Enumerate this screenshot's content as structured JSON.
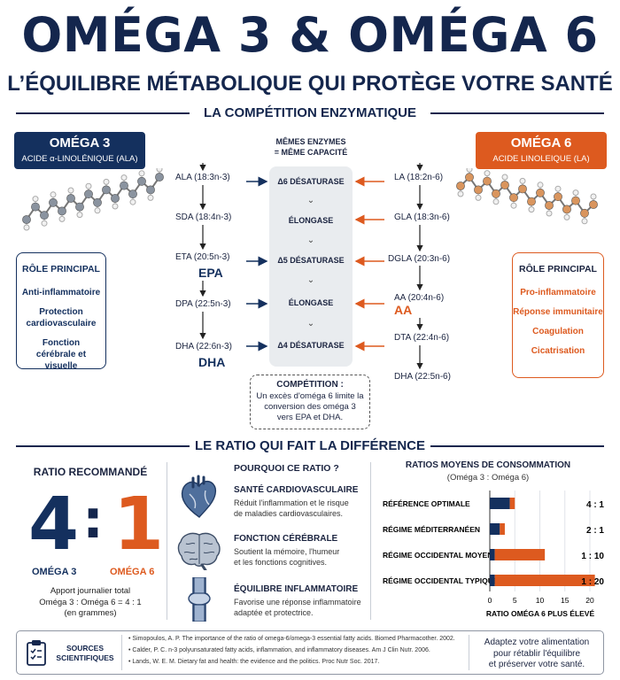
{
  "header": {
    "title": "OMÉGA 3 & OMÉGA 6",
    "subtitle": "L’ÉQUILIBRE MÉTABOLIQUE QUI PROTÈGE VOTRE SANTÉ"
  },
  "section1": {
    "title": "LA COMPÉTITION ENZYMATIQUE",
    "enzymes_heading": [
      "MÊMES ENZYMES",
      "= MÊME CAPACITÉ"
    ]
  },
  "omega3": {
    "title": "OMÉGA 3",
    "subtitle": "ACIDE α-LINOLÉNIQUE (ALA)",
    "color": "#14305e",
    "chain": [
      "ALA (18:3n-3)",
      "SDA (18:4n-3)",
      "ETA (20:5n-3)",
      "DPA (22:5n-3)",
      "DHA (22:6n-3)"
    ],
    "highlights": [
      "EPA",
      "DHA"
    ],
    "role": {
      "title": "RÔLE PRINCIPAL",
      "items": [
        "Anti-inflammatoire",
        "Protection cardiovasculaire",
        "Fonction cérébrale et visuelle"
      ]
    }
  },
  "omega6": {
    "title": "OMÉGA 6",
    "subtitle": "ACIDE LINOLEIQUE (LA)",
    "color": "#dd5a1f",
    "chain": [
      "LA (18:2n-6)",
      "GLA (18:3n-6)",
      "DGLA (20:3n-6)",
      "AA (20:4n-6)",
      "DTA (22:4n-6)",
      "DHA (22:5n-6)"
    ],
    "highlights": [
      "AA"
    ],
    "role": {
      "title": "RÔLE PRINCIPAL",
      "items": [
        "Pro-inflammatoire",
        "Réponse immunitaire",
        "Coagulation",
        "Cicatrisation"
      ]
    }
  },
  "enzymes": [
    "Δ6 DÉSATURASE",
    "ÉLONGASE",
    "Δ5 DÉSATURASE",
    "ÉLONGASE",
    "Δ4 DÉSATURASE"
  ],
  "competition": {
    "title": "COMPÉTITION :",
    "text": "Un excès d'oméga 6 limite la conversion des oméga 3 vers EPA et DHA."
  },
  "section2": {
    "title": "LE RATIO QUI FAIT LA DIFFÉRENCE"
  },
  "recommended": {
    "title": "RATIO RECOMMANDÉ",
    "left_num": "4",
    "colon": ":",
    "right_num": "1",
    "left_label": "OMÉGA 3",
    "right_label": "OMÉGA 6",
    "note_lines": [
      "Apport journalier total",
      "Oméga 3 : Oméga 6 = 4 : 1",
      "(en grammes)"
    ]
  },
  "why": {
    "title": "POURQUOI CE RATIO ?",
    "items": [
      {
        "icon": "heart-icon",
        "title": "SANTÉ CARDIOVASCULAIRE",
        "lines": [
          "Réduit l'inflammation et le risque",
          "de maladies cardiovasculaires."
        ]
      },
      {
        "icon": "brain-icon",
        "title": "FONCTION CÉRÉBRALE",
        "lines": [
          "Soutient la mémoire, l'humeur",
          "et les fonctions cognitives."
        ]
      },
      {
        "icon": "joint-icon",
        "title": "ÉQUILIBRE INFLAMMATOIRE",
        "lines": [
          "Favorise une réponse inflammatoire",
          "adaptée et protectrice."
        ]
      }
    ]
  },
  "chart_data": {
    "type": "bar",
    "title": "RATIOS MOYENS DE CONSOMMATION",
    "subtitle": "(Oméga 3 : Oméga 6)",
    "categories": [
      "RÉFÉRENCE OPTIMALE",
      "RÉGIME MÉDITERRANÉEN",
      "RÉGIME OCCIDENTAL MOYEN",
      "RÉGIME OCCIDENTAL TYPIQUE"
    ],
    "value_labels": [
      "4 : 1",
      "2 : 1",
      "1 : 10",
      "1 : 20"
    ],
    "series": [
      {
        "values": [
          4,
          2,
          1,
          1
        ],
        "color": "#14305e"
      },
      {
        "values": [
          1,
          1,
          10,
          20
        ],
        "color": "#dd5a1f"
      }
    ],
    "ticks": [
      0,
      5,
      10,
      15,
      20
    ],
    "xlim": [
      0,
      20
    ],
    "xlabel": "RATIO OMÉGA 6 PLUS ÉLEVÉ",
    "stacked": true
  },
  "sources": {
    "label_lines": [
      "SOURCES",
      "SCIENTIFIQUES"
    ],
    "items": [
      "• Simopoulos, A. P. The importance of the ratio of omega-6/omega-3 essential fatty acids. Biomed Pharmacother. 2002.",
      "• Calder, P. C. n-3 polyunsaturated fatty acids, inflammation, and inflammatory diseases. Am J Clin Nutr. 2006.",
      "• Lands, W. E. M. Dietary fat and health: the evidence and the politics. Proc Nutr Soc. 2017."
    ],
    "advice_lines": [
      "Adaptez votre alimentation",
      "pour rétablir l'équilibre",
      "et préserver votre santé."
    ]
  }
}
